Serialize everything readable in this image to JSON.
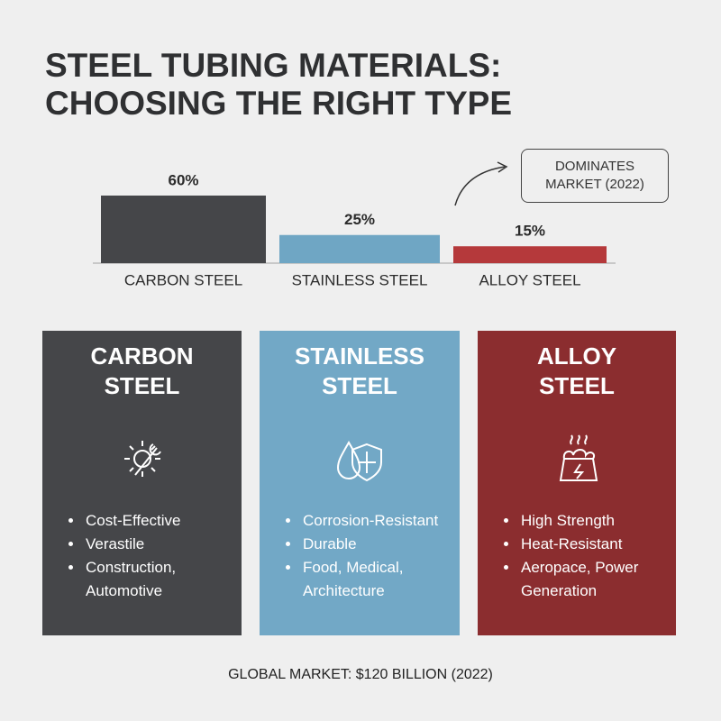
{
  "chart_data": {
    "type": "bar",
    "title": "STEEL TUBING MATERIALS: CHOOSING THE RIGHT TYPE",
    "categories": [
      "CARBON STEEL",
      "STAINLESS STEEL",
      "ALLOY STEEL"
    ],
    "values": [
      60,
      25,
      15
    ],
    "value_labels": [
      "60%",
      "25%",
      "15%"
    ],
    "colors": [
      "#454649",
      "#6fa6c4",
      "#b5393b"
    ],
    "annotation": "DOMINATES MARKET (2022)"
  },
  "cards": [
    {
      "title": "CARBON STEEL",
      "color": "#454649",
      "items": [
        "Cost-Effective",
        "Verastile",
        "Construction, Automotive"
      ]
    },
    {
      "title": "STAINLESS STEEL",
      "color": "#72a8c6",
      "items": [
        "Corrosion-Resistant",
        "Durable",
        "Food, Medical, Architecture"
      ]
    },
    {
      "title": "ALLOY STEEL",
      "color": "#8b2d2f",
      "items": [
        "High Strength",
        "Heat-Resistant",
        "Aeropace, Power Generation"
      ]
    }
  ],
  "footer": "GLOBAL MARKET: $120 BILLION (2022)"
}
